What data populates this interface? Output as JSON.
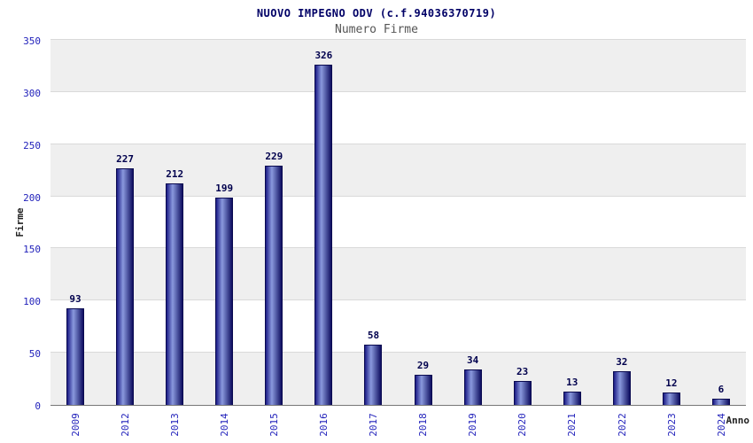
{
  "header": {
    "title": "NUOVO IMPEGNO ODV (c.f.94036370719)",
    "subtitle": "Numero Firme"
  },
  "chart_data": {
    "type": "bar",
    "title": "NUOVO IMPEGNO ODV (c.f.94036370719)",
    "subtitle": "Numero Firme",
    "xlabel": "Anno",
    "ylabel": "Firme",
    "categories": [
      "2009",
      "2012",
      "2013",
      "2014",
      "2015",
      "2016",
      "2017",
      "2018",
      "2019",
      "2020",
      "2021",
      "2022",
      "2023",
      "2024"
    ],
    "values": [
      93,
      227,
      212,
      199,
      229,
      326,
      58,
      29,
      34,
      23,
      13,
      32,
      12,
      6
    ],
    "ylim": [
      0,
      350
    ],
    "ytick_step": 50,
    "yticks": [
      0,
      50,
      100,
      150,
      200,
      250,
      300,
      350
    ],
    "grid": true,
    "legend": "none",
    "colors": {
      "bar_dark": "#0e0e60",
      "bar_mid": "#1b1b86",
      "bar_highlight": "#8a99dd",
      "band_gray": "#efefef",
      "band_white": "#ffffff",
      "gridline": "#d9d9d9",
      "tick_label": "#2222bb",
      "value_label": "#00004d",
      "title": "#000066",
      "subtitle": "#555555"
    }
  }
}
